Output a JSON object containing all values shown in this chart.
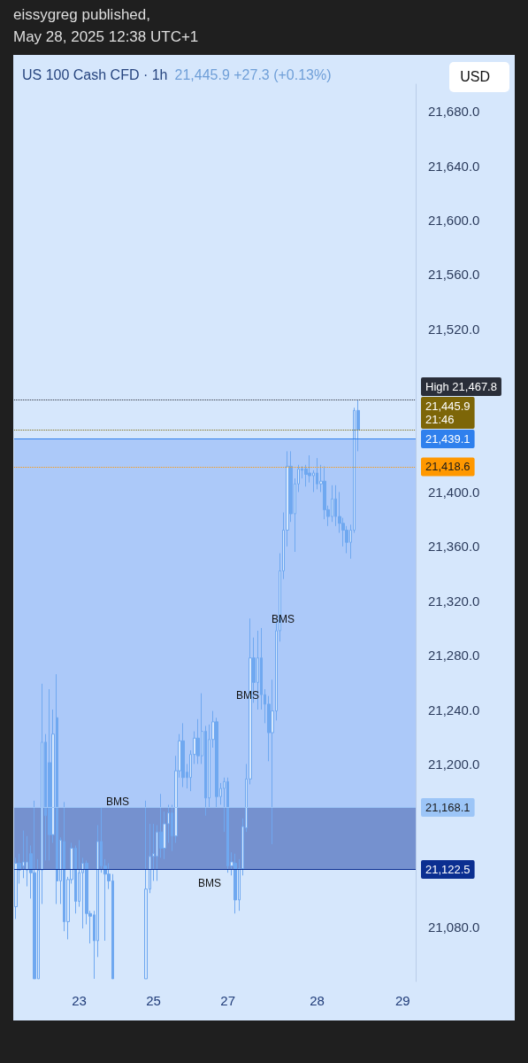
{
  "chart_data": {
    "type": "candlestick",
    "title": "US 100 Cash CFD · 1h",
    "subtitle": "21,445.9  +27.3 (+0.13%)",
    "ylabel": "USD",
    "color": "#6fa8f0",
    "grid": false,
    "categories": [
      null,
      null,
      null,
      null,
      null,
      null,
      null,
      null,
      null,
      null,
      null,
      null,
      null,
      null,
      null,
      null,
      null,
      "23",
      null,
      null,
      null,
      null,
      null,
      null,
      null,
      null,
      null,
      null,
      null,
      null,
      null,
      null,
      null,
      null,
      null,
      null,
      null,
      "25",
      null,
      null,
      null,
      null,
      null,
      null,
      null,
      null,
      null,
      null,
      null,
      null,
      null,
      null,
      null,
      null,
      null,
      null,
      null,
      "27",
      null,
      null,
      null,
      null,
      null,
      null,
      null,
      null,
      null,
      null,
      null,
      null,
      null,
      null,
      null,
      null,
      null,
      null,
      null,
      null,
      null,
      null,
      null,
      "28",
      null,
      null,
      null,
      null,
      null,
      null,
      null,
      null,
      null,
      null,
      null,
      null,
      null,
      null,
      null,
      null,
      null,
      null,
      null,
      null,
      null,
      null,
      "29",
      null,
      null,
      null
    ],
    "ohlc": [
      [
        21095,
        21131,
        21086,
        21127
      ],
      [
        21127,
        21134,
        21112,
        21122
      ],
      [
        21125,
        21151,
        21116,
        21128
      ],
      [
        21122,
        21147,
        21110,
        21128
      ],
      [
        21134,
        21140,
        21101,
        21120
      ],
      [
        21120,
        21173,
        21042,
        21042
      ],
      [
        21042,
        21130,
        21042,
        21122
      ],
      [
        21122,
        21259,
        21097,
        21216
      ],
      [
        21216,
        21222,
        21129,
        21162
      ],
      [
        21201,
        21255,
        21129,
        21148
      ],
      [
        21148,
        21240,
        21142,
        21222
      ],
      [
        21234,
        21266,
        21097,
        21114
      ],
      [
        21114,
        21146,
        21097,
        21144
      ],
      [
        21143,
        21172,
        21077,
        21084
      ],
      [
        21084,
        21117,
        21071,
        21115
      ],
      [
        21115,
        21142,
        21112,
        21138
      ],
      [
        21138,
        21140,
        21090,
        21099
      ],
      [
        21099,
        21144,
        21095,
        21120
      ],
      [
        21120,
        21131,
        21079,
        21127
      ],
      [
        21127,
        21129,
        21082,
        21090
      ],
      [
        21090,
        21092,
        21068,
        21088
      ],
      [
        21089,
        21092,
        21042,
        21070
      ],
      [
        21070,
        21155,
        21058,
        21143
      ],
      [
        21143,
        21168,
        21120,
        21125
      ],
      [
        21125,
        21130,
        21070,
        21119
      ],
      [
        21119,
        21127,
        21108,
        21114
      ],
      [
        21114,
        21119,
        21042,
        21042
      ],
      null,
      null,
      null,
      null,
      null,
      null,
      null,
      null,
      [
        21042,
        21173,
        21042,
        21108
      ],
      [
        21108,
        21156,
        21105,
        21132
      ],
      [
        21132,
        21156,
        21114,
        21134
      ],
      [
        21132,
        21155,
        21114,
        21150
      ],
      [
        21150,
        21178,
        21131,
        21138
      ],
      [
        21138,
        21165,
        21130,
        21156
      ],
      [
        21156,
        21170,
        21142,
        21164
      ],
      [
        21164,
        21170,
        21136,
        21147
      ],
      [
        21147,
        21206,
        21142,
        21195
      ],
      [
        21195,
        21222,
        21190,
        21217
      ],
      [
        21217,
        21230,
        21183,
        21190
      ],
      [
        21194,
        21200,
        21182,
        21190
      ],
      [
        21190,
        21210,
        21180,
        21207
      ],
      [
        21207,
        21224,
        21200,
        21219
      ],
      [
        21219,
        21233,
        21200,
        21206
      ],
      [
        21206,
        21252,
        21200,
        21224
      ],
      [
        21224,
        21228,
        21162,
        21175
      ],
      [
        21175,
        21229,
        21168,
        21218
      ],
      [
        21218,
        21239,
        21212,
        21231
      ],
      [
        21231,
        21234,
        21168,
        21176
      ],
      [
        21176,
        21186,
        21170,
        21182
      ],
      [
        21182,
        21190,
        21150,
        21187
      ],
      [
        21187,
        21190,
        21120,
        21125
      ],
      [
        21125,
        21135,
        21118,
        21128
      ],
      [
        21127,
        21134,
        21090,
        21100
      ],
      [
        21100,
        21130,
        21092,
        21123
      ],
      [
        21123,
        21160,
        21118,
        21154
      ],
      [
        21153,
        21200,
        21150,
        21189
      ],
      [
        21189,
        21307,
        21185,
        21278
      ],
      [
        21278,
        21293,
        21245,
        21260
      ],
      [
        21260,
        21298,
        21240,
        21278
      ],
      [
        21278,
        21300,
        21240,
        21251
      ],
      [
        21251,
        21255,
        21230,
        21244
      ],
      [
        21244,
        21250,
        21202,
        21223
      ],
      [
        21223,
        21262,
        21141,
        21239
      ],
      [
        21239,
        21305,
        21232,
        21298
      ],
      [
        21298,
        21355,
        21290,
        21342
      ],
      [
        21342,
        21385,
        21336,
        21372
      ],
      [
        21372,
        21430,
        21360,
        21419
      ],
      [
        21419,
        21430,
        21378,
        21384
      ],
      [
        21384,
        21410,
        21356,
        21406
      ],
      [
        21406,
        21420,
        21400,
        21417
      ],
      [
        21417,
        21419,
        21410,
        21416
      ],
      [
        21417,
        21420,
        21404,
        21413
      ],
      [
        21414,
        21427,
        21407,
        21412
      ],
      [
        21412,
        21416,
        21400,
        21414
      ],
      [
        21414,
        21425,
        21402,
        21406
      ],
      [
        21406,
        21420,
        21400,
        21408
      ],
      [
        21408,
        21419,
        21380,
        21387
      ],
      [
        21387,
        21390,
        21375,
        21382
      ],
      [
        21382,
        21405,
        21378,
        21395
      ],
      [
        21395,
        21405,
        21375,
        21382
      ],
      [
        21382,
        21400,
        21370,
        21377
      ],
      [
        21377,
        21381,
        21360,
        21372
      ],
      [
        21372,
        21375,
        21355,
        21363
      ],
      [
        21363,
        21376,
        21351,
        21372
      ],
      [
        21372,
        21462,
        21370,
        21460
      ],
      [
        21460,
        21467.8,
        21430,
        21445.9
      ],
      null,
      null,
      null,
      null,
      null,
      null,
      null,
      null,
      null,
      null,
      null,
      null,
      null,
      null,
      null
    ],
    "ylim": [
      21040,
      21700
    ],
    "yticks": [
      {
        "value": 21080,
        "label": "21,080.0"
      },
      {
        "value": 21200,
        "label": "21,200.0"
      },
      {
        "value": 21240,
        "label": "21,240.0"
      },
      {
        "value": 21280,
        "label": "21,280.0"
      },
      {
        "value": 21320,
        "label": "21,320.0"
      },
      {
        "value": 21360,
        "label": "21,360.0"
      },
      {
        "value": 21400,
        "label": "21,400.0"
      },
      {
        "value": 21520,
        "label": "21,520.0"
      },
      {
        "value": 21560,
        "label": "21,560.0"
      },
      {
        "value": 21600,
        "label": "21,600.0"
      },
      {
        "value": 21640,
        "label": "21,640.0"
      },
      {
        "value": 21680,
        "label": "21,680.0"
      }
    ],
    "bands": [
      {
        "axis": "y",
        "from": 21168.1,
        "to": 21439.1,
        "color": "#8fb6f6"
      },
      {
        "axis": "y",
        "from": 21122.5,
        "to": 21168.1,
        "color": "#3358b0"
      }
    ],
    "ref_lines": [
      {
        "axis": "y",
        "value": 21467.8,
        "label": "High 21,467.8",
        "color": "#2a2e39",
        "line_style": "dotted"
      },
      {
        "axis": "y",
        "value": 21445.9,
        "label": "21,445.9\n21:46",
        "color": "#7d6608",
        "line_style": "dotted"
      },
      {
        "axis": "y",
        "value": 21439.1,
        "label": "21,439.1",
        "color": "#2f80ed",
        "line_style": "solid"
      },
      {
        "axis": "y",
        "value": 21418.6,
        "label": "21,418.6",
        "color": "#ff9800",
        "line_style": "dotted"
      },
      {
        "axis": "y",
        "value": 21168.1,
        "label": "21,168.1",
        "color": "#9cc5f7",
        "line_style": "solid"
      },
      {
        "axis": "y",
        "value": 21122.5,
        "label": "21,122.5",
        "color": "#0b2f91",
        "line_style": "solid"
      }
    ],
    "annotations": [
      "eissygreg published,",
      "May 28, 2025 12:38 UTC+1",
      "BMS",
      "BMS",
      "BMS",
      "BMS"
    ]
  }
}
